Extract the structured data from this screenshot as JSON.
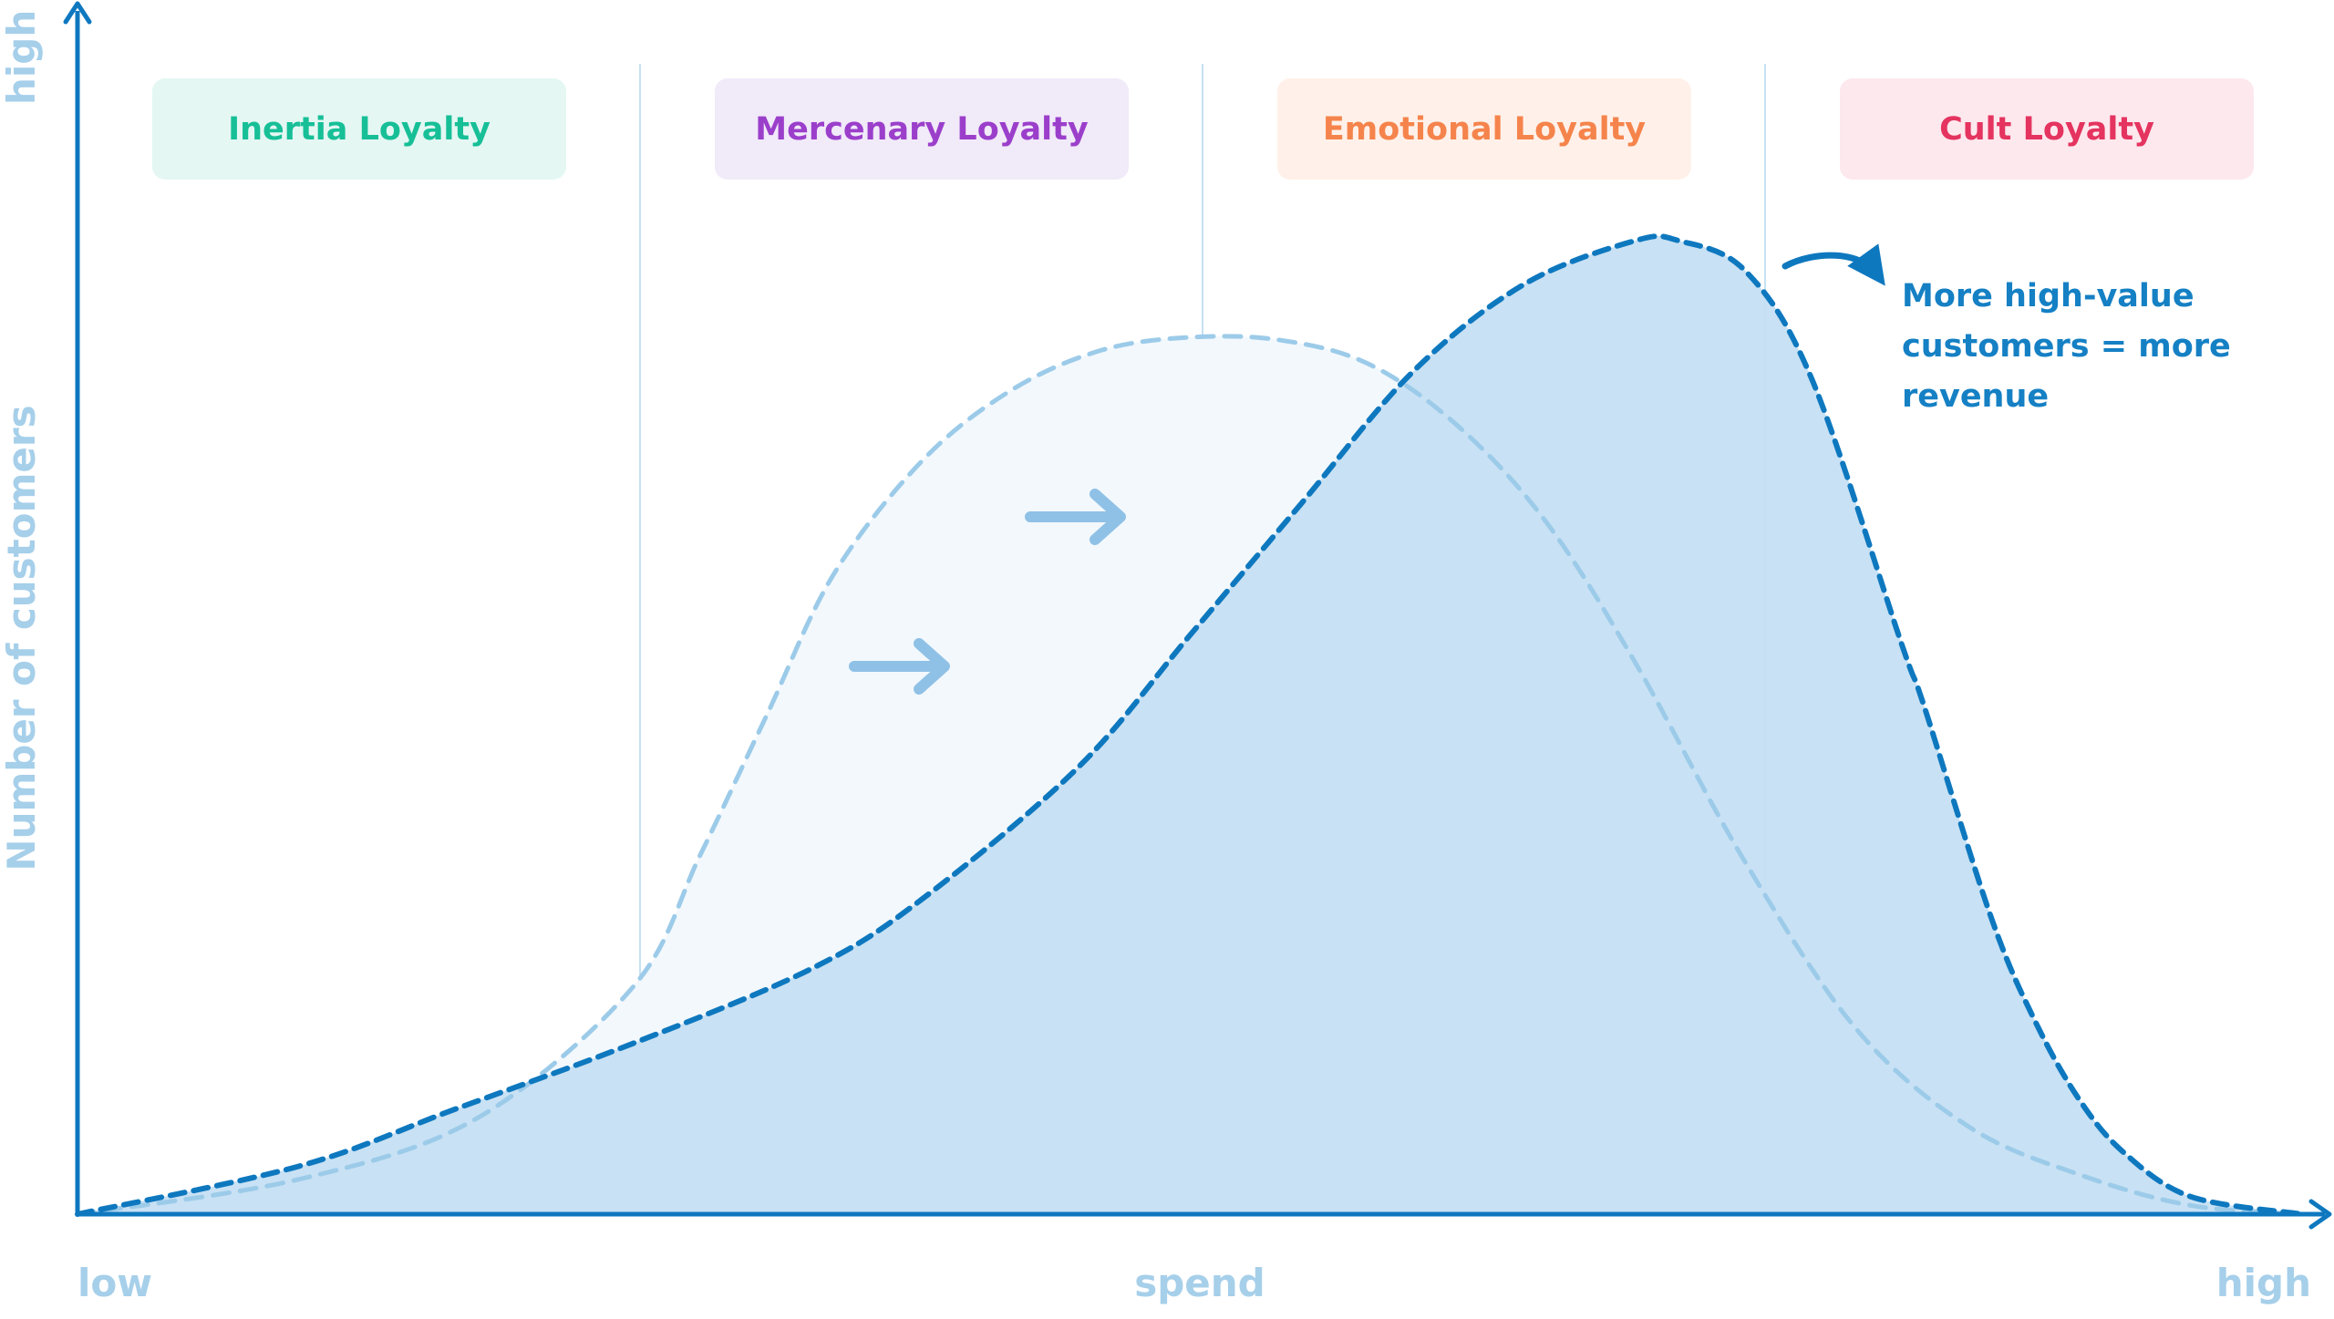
{
  "chart_data": {
    "type": "area",
    "xlabel": "spend",
    "ylabel": "Number of customers",
    "x_min_label": "low",
    "x_max_label": "high",
    "y_max_label": "high",
    "segments": [
      {
        "label": "Inertia Loyalty",
        "color": "#17bf97",
        "bg": "#e4f7f3"
      },
      {
        "label": "Mercenary Loyalty",
        "color": "#9b3fcb",
        "bg": "#f1eaf9"
      },
      {
        "label": "Emotional Loyalty",
        "color": "#f5844c",
        "bg": "#fff1e9"
      },
      {
        "label": "Cult Loyalty",
        "color": "#e4345f",
        "bg": "#fde8ee"
      }
    ],
    "annotation": [
      "More high-value",
      "customers = more",
      "revenue"
    ],
    "series": [
      {
        "style": "before",
        "color": "#9ccbe9",
        "fill": "#f2f8fc",
        "x": [
          0,
          0.1,
          0.18,
          0.25,
          0.28,
          0.31,
          0.34,
          0.38,
          0.42,
          0.46,
          0.5,
          0.54,
          0.58,
          0.62,
          0.66,
          0.7,
          0.75,
          0.8,
          0.85,
          0.9,
          0.95,
          1
        ],
        "y": [
          0,
          0.04,
          0.11,
          0.26,
          0.41,
          0.57,
          0.73,
          0.86,
          0.94,
          0.985,
          1.0,
          0.997,
          0.97,
          0.9,
          0.79,
          0.63,
          0.4,
          0.21,
          0.1,
          0.045,
          0.01,
          0
        ]
      },
      {
        "style": "after",
        "color": "#0e78bf",
        "fill": "#c5dff3",
        "x": [
          0,
          0.1,
          0.17,
          0.25,
          0.33,
          0.38,
          0.45,
          0.5,
          0.55,
          0.6,
          0.65,
          0.7,
          0.72,
          0.75,
          0.78,
          0.82,
          0.83,
          0.86,
          0.88,
          0.9,
          0.92,
          0.95,
          1
        ],
        "y": [
          0,
          0.055,
          0.12,
          0.195,
          0.28,
          0.36,
          0.51,
          0.66,
          0.81,
          0.96,
          1.06,
          1.11,
          1.11,
          1.075,
          0.95,
          0.65,
          0.58,
          0.34,
          0.22,
          0.13,
          0.07,
          0.02,
          0
        ]
      }
    ]
  }
}
